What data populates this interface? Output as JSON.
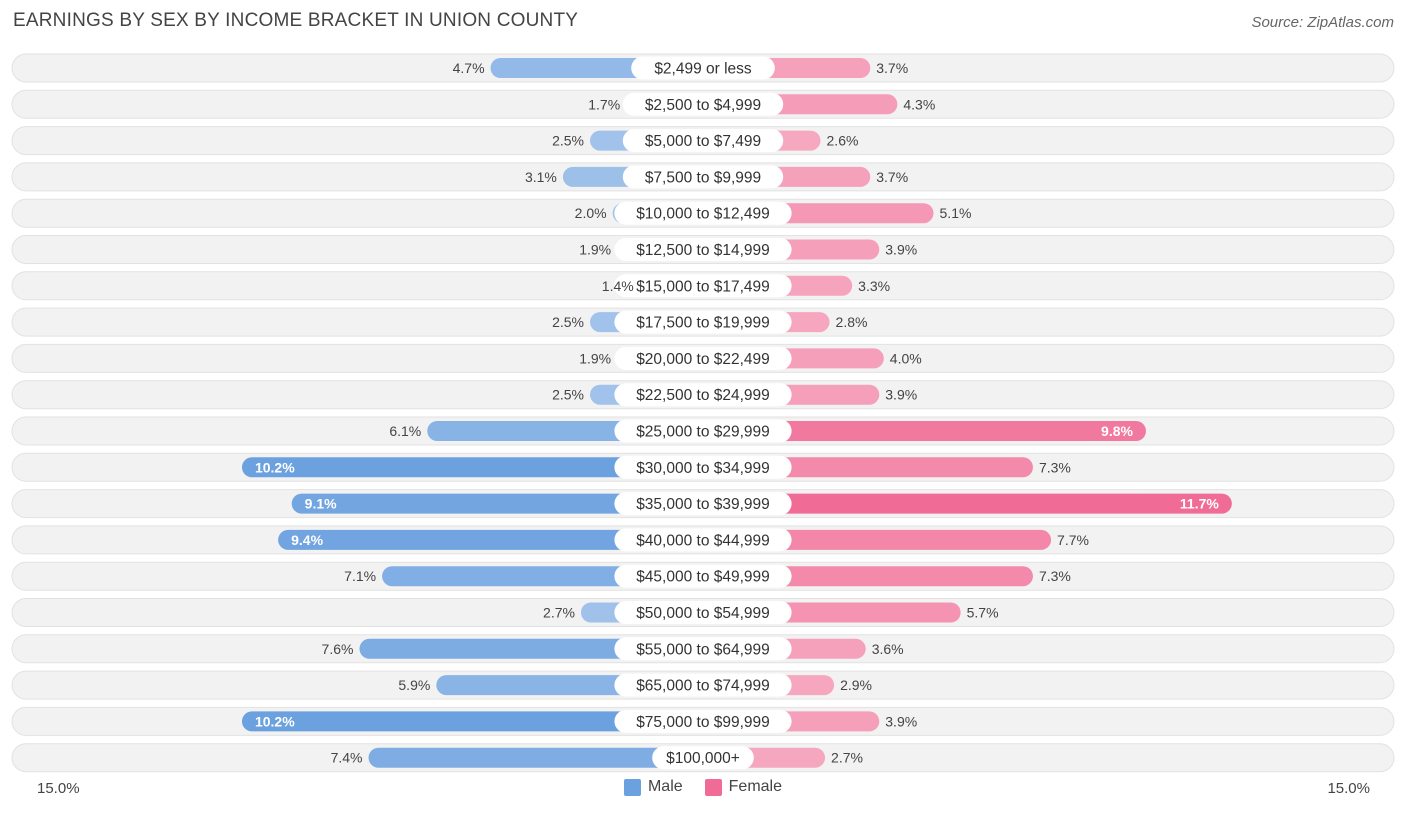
{
  "title": "EARNINGS BY SEX BY INCOME BRACKET IN UNION COUNTY",
  "source": "Source: ZipAtlas.com",
  "axis": {
    "left_label": "15.0%",
    "right_label": "15.0%"
  },
  "legend": {
    "male_label": "Male",
    "female_label": "Female"
  },
  "colors": {
    "male_light": "#a9c7ec",
    "male_dark": "#6ba1df",
    "female_light": "#f6a8c0",
    "female_dark": "#f06c97",
    "row_bg": "#f2f2f2"
  },
  "chart_data": {
    "type": "bar",
    "orientation": "horizontal-diverging",
    "title": "EARNINGS BY SEX BY INCOME BRACKET IN UNION COUNTY",
    "xlim": [
      -15.0,
      15.0
    ],
    "categories": [
      "$2,499 or less",
      "$2,500 to $4,999",
      "$5,000 to $7,499",
      "$7,500 to $9,999",
      "$10,000 to $12,499",
      "$12,500 to $14,999",
      "$15,000 to $17,499",
      "$17,500 to $19,999",
      "$20,000 to $22,499",
      "$22,500 to $24,999",
      "$25,000 to $29,999",
      "$30,000 to $34,999",
      "$35,000 to $39,999",
      "$40,000 to $44,999",
      "$45,000 to $49,999",
      "$50,000 to $54,999",
      "$55,000 to $64,999",
      "$65,000 to $74,999",
      "$75,000 to $99,999",
      "$100,000+"
    ],
    "series": [
      {
        "name": "Male",
        "values": [
          4.7,
          1.7,
          2.5,
          3.1,
          2.0,
          1.9,
          1.4,
          2.5,
          1.9,
          2.5,
          6.1,
          10.2,
          9.1,
          9.4,
          7.1,
          2.7,
          7.6,
          5.9,
          10.2,
          7.4
        ]
      },
      {
        "name": "Female",
        "values": [
          3.7,
          4.3,
          2.6,
          3.7,
          5.1,
          3.9,
          3.3,
          2.8,
          4.0,
          3.9,
          9.8,
          7.3,
          11.7,
          7.7,
          7.3,
          5.7,
          3.6,
          2.9,
          3.9,
          2.7
        ]
      }
    ]
  }
}
